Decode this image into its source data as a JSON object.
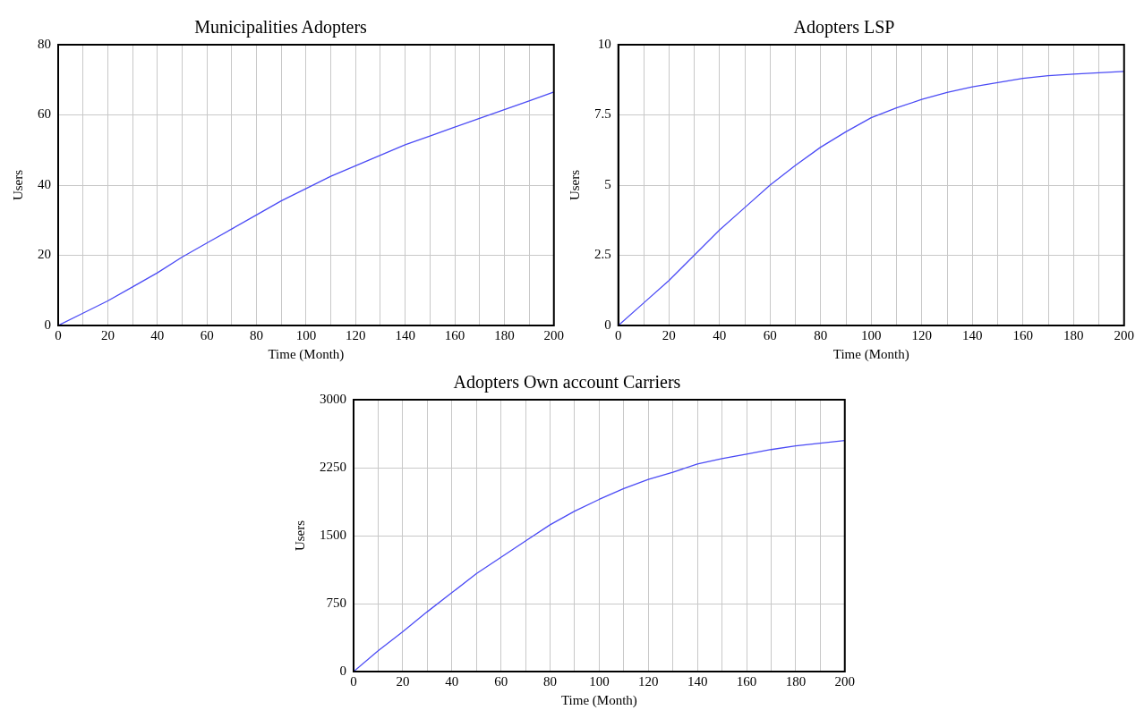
{
  "chart_data": [
    {
      "type": "line",
      "title": "Municipalities Adopters",
      "xlabel": "Time (Month)",
      "ylabel": "Users",
      "color": "#4b4bf5",
      "marker": "none",
      "grid": true,
      "x": [
        0,
        10,
        20,
        30,
        40,
        50,
        60,
        70,
        80,
        90,
        100,
        110,
        120,
        130,
        140,
        150,
        160,
        170,
        180,
        190,
        200
      ],
      "values": [
        0,
        3.5,
        7,
        11,
        15,
        19.5,
        23.5,
        27.5,
        31.5,
        35.5,
        39,
        42.5,
        45.5,
        48.5,
        51.5,
        54,
        56.5,
        59,
        61.5,
        64,
        66.5
      ],
      "xlim": [
        0,
        200
      ],
      "xticks": [
        0,
        {
          "value": 10,
          "label": null
        },
        20,
        {
          "value": 30,
          "label": null
        },
        40,
        {
          "value": 50,
          "label": null
        },
        60,
        {
          "value": 70,
          "label": null
        },
        80,
        {
          "value": 90,
          "label": null
        },
        100,
        {
          "value": 110,
          "label": null
        },
        120,
        {
          "value": 130,
          "label": null
        },
        140,
        {
          "value": 150,
          "label": null
        },
        160,
        {
          "value": 170,
          "label": null
        },
        180,
        {
          "value": 190,
          "label": null
        },
        200
      ],
      "ylim": [
        0,
        80
      ],
      "yticks": [
        0,
        20,
        40,
        60,
        80
      ]
    },
    {
      "type": "line",
      "title": "Adopters LSP",
      "xlabel": "Time (Month)",
      "ylabel": "Users",
      "color": "#4b4bf5",
      "marker": "none",
      "grid": true,
      "x": [
        0,
        10,
        20,
        30,
        40,
        50,
        60,
        70,
        80,
        90,
        100,
        110,
        120,
        130,
        140,
        150,
        160,
        170,
        180,
        190,
        200
      ],
      "values": [
        0,
        0.8,
        1.6,
        2.5,
        3.4,
        4.2,
        5,
        5.7,
        6.35,
        6.9,
        7.4,
        7.75,
        8.05,
        8.3,
        8.5,
        8.65,
        8.8,
        8.9,
        8.95,
        9,
        9.05
      ],
      "xlim": [
        0,
        200
      ],
      "xticks": [
        0,
        {
          "value": 10,
          "label": null
        },
        20,
        {
          "value": 30,
          "label": null
        },
        40,
        {
          "value": 50,
          "label": null
        },
        60,
        {
          "value": 70,
          "label": null
        },
        80,
        {
          "value": 90,
          "label": null
        },
        100,
        {
          "value": 110,
          "label": null
        },
        120,
        {
          "value": 130,
          "label": null
        },
        140,
        {
          "value": 150,
          "label": null
        },
        160,
        {
          "value": 170,
          "label": null
        },
        180,
        {
          "value": 190,
          "label": null
        },
        200
      ],
      "ylim": [
        0,
        10
      ],
      "yticks": [
        0,
        2.5,
        5,
        7.5,
        10
      ]
    },
    {
      "type": "line",
      "title": "Adopters Own account Carriers",
      "xlabel": "Time (Month)",
      "ylabel": "Users",
      "color": "#4b4bf5",
      "marker": "none",
      "grid": true,
      "x": [
        0,
        10,
        20,
        30,
        40,
        50,
        60,
        70,
        80,
        90,
        100,
        110,
        120,
        130,
        140,
        150,
        160,
        170,
        180,
        190,
        200
      ],
      "values": [
        0,
        230,
        440,
        660,
        870,
        1080,
        1260,
        1440,
        1620,
        1770,
        1900,
        2020,
        2120,
        2200,
        2290,
        2350,
        2400,
        2450,
        2490,
        2520,
        2550
      ],
      "xlim": [
        0,
        200
      ],
      "xticks": [
        0,
        {
          "value": 10,
          "label": null
        },
        20,
        {
          "value": 30,
          "label": null
        },
        40,
        {
          "value": 50,
          "label": null
        },
        60,
        {
          "value": 70,
          "label": null
        },
        80,
        {
          "value": 90,
          "label": null
        },
        100,
        {
          "value": 110,
          "label": null
        },
        120,
        {
          "value": 130,
          "label": null
        },
        140,
        {
          "value": 150,
          "label": null
        },
        160,
        {
          "value": 170,
          "label": null
        },
        180,
        {
          "value": 190,
          "label": null
        },
        200
      ],
      "ylim": [
        0,
        3000
      ],
      "yticks": [
        0,
        750,
        1500,
        2250,
        3000
      ]
    }
  ]
}
